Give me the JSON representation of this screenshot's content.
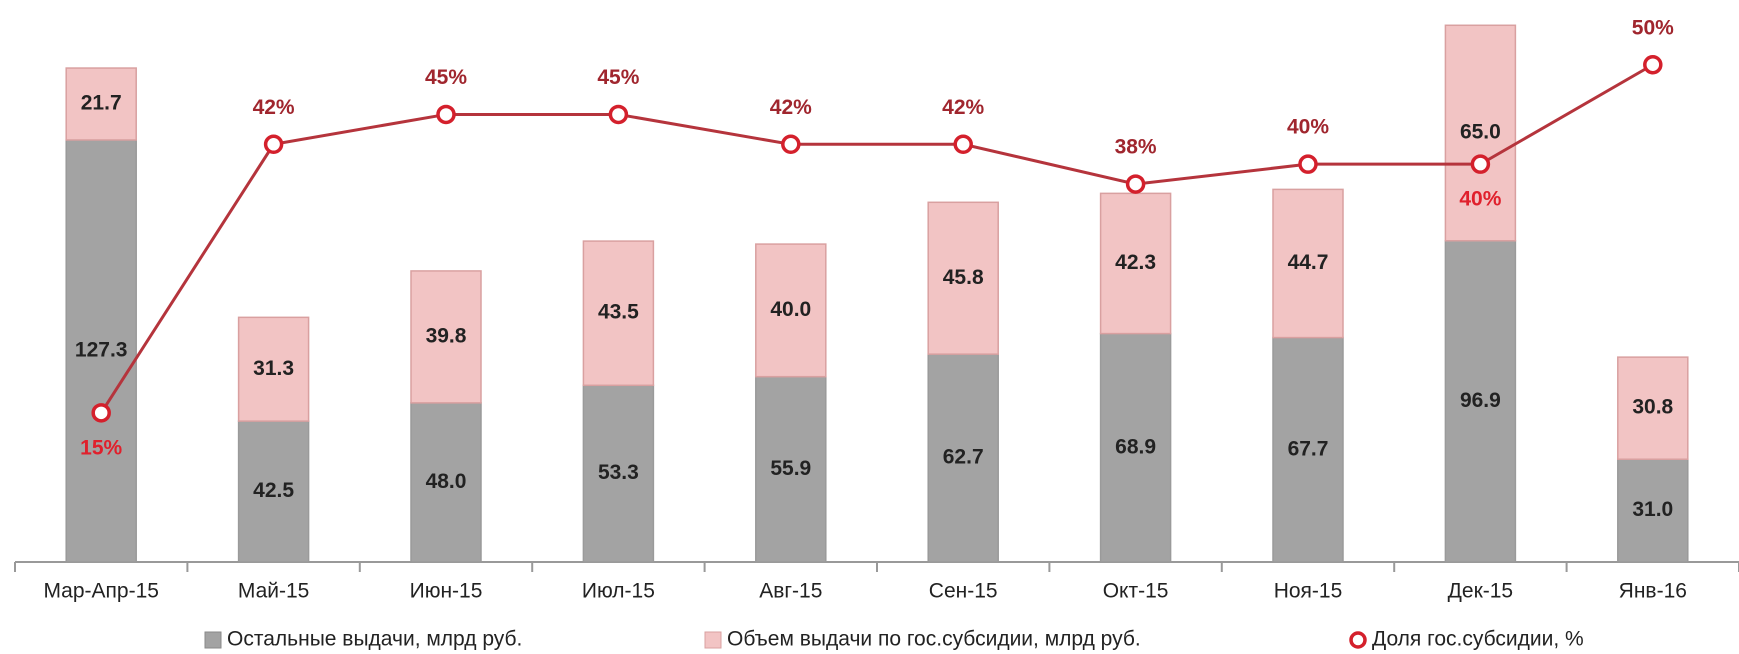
{
  "chart_data": {
    "type": "bar-line",
    "categories": [
      "Мар-Апр-15",
      "Май-15",
      "Июн-15",
      "Июл-15",
      "Авг-15",
      "Сен-15",
      "Окт-15",
      "Ноя-15",
      "Дек-15",
      "Янв-16"
    ],
    "series": [
      {
        "name": "Остальные выдачи, млрд руб.",
        "color": "#a3a3a3",
        "type": "bar",
        "values": [
          127.3,
          42.5,
          48.0,
          53.3,
          55.9,
          62.7,
          68.9,
          67.7,
          96.9,
          31.0
        ],
        "value_labels": [
          "127.3",
          "42.5",
          "48.0",
          "53.3",
          "55.9",
          "62.7",
          "68.9",
          "67.7",
          "96.9",
          "31.0"
        ]
      },
      {
        "name": "Объем выдачи по гос.субсидии, млрд руб.",
        "color": "#f2c4c4",
        "type": "bar",
        "values": [
          21.7,
          31.3,
          39.8,
          43.5,
          40.0,
          45.8,
          42.3,
          44.7,
          65.0,
          30.8
        ],
        "value_labels": [
          "21.7",
          "31.3",
          "39.8",
          "43.5",
          "40.0",
          "45.8",
          "42.3",
          "44.7",
          "65.0",
          "30.8"
        ]
      },
      {
        "name": "Доля гос.субсидии, %",
        "color": "#b5343c",
        "type": "line",
        "axis": "y2",
        "values": [
          15,
          42,
          45,
          45,
          42,
          42,
          38,
          40,
          40,
          50
        ],
        "value_labels": [
          "15%",
          "42%",
          "45%",
          "45%",
          "42%",
          "42%",
          "38%",
          "40%",
          "40%",
          "50%"
        ]
      }
    ],
    "stacked": true,
    "ylim": [
      0,
      165
    ],
    "y2lim": [
      0,
      55
    ],
    "legend": "bottom"
  }
}
